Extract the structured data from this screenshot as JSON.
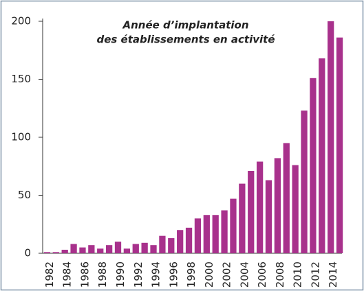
{
  "chart_data": {
    "type": "bar",
    "title": [
      "Année d’implantation",
      "des établissements en activité"
    ],
    "categories": [
      "1982",
      null,
      "1984",
      null,
      "1986",
      null,
      "1988",
      null,
      "1990",
      null,
      "1992",
      null,
      "1994",
      null,
      "1996",
      null,
      "1998",
      null,
      "2000",
      null,
      "2002",
      null,
      "2004",
      null,
      "2006",
      null,
      "2008",
      null,
      "2010",
      null,
      "2012",
      null,
      "2014",
      null
    ],
    "values": [
      1,
      1,
      3,
      8,
      5,
      7,
      4,
      7,
      10,
      4,
      8,
      9,
      7,
      15,
      13,
      20,
      22,
      30,
      33,
      33,
      37,
      47,
      60,
      71,
      79,
      63,
      82,
      95,
      76,
      123,
      151,
      168,
      200,
      186
    ],
    "color": "#a8318c",
    "ylim": [
      0,
      200
    ],
    "yticks": [
      0,
      50,
      100,
      150,
      200
    ],
    "grid": false
  }
}
